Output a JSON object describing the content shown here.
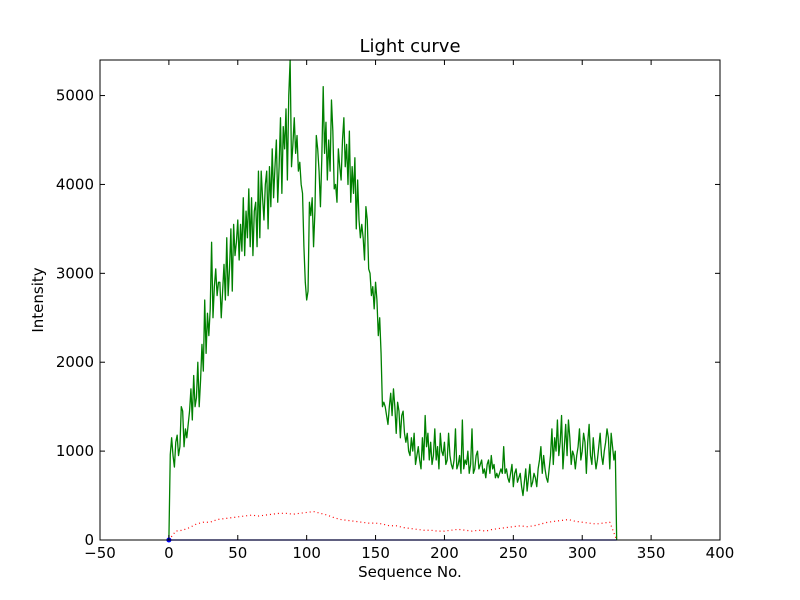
{
  "chart_data": {
    "type": "line",
    "title": "Light curve",
    "xlabel": "Sequence No.",
    "ylabel": "Intensity",
    "xlim": [
      -50,
      400
    ],
    "ylim": [
      0,
      5400
    ],
    "x_ticks": [
      "−50",
      "0",
      "50",
      "100",
      "150",
      "200",
      "250",
      "300",
      "350",
      "400"
    ],
    "y_ticks": [
      "0",
      "1000",
      "2000",
      "3000",
      "4000",
      "5000"
    ],
    "x_tick_values": [
      -50,
      0,
      50,
      100,
      150,
      200,
      250,
      300,
      350,
      400
    ],
    "y_tick_values": [
      0,
      1000,
      2000,
      3000,
      4000,
      5000
    ],
    "grid": false,
    "series": [
      {
        "color": "#008000",
        "style": "solid",
        "x": [
          0,
          1,
          2,
          3,
          4,
          5,
          6,
          7,
          8,
          9,
          10,
          11,
          12,
          13,
          14,
          15,
          16,
          17,
          18,
          19,
          20,
          21,
          22,
          23,
          24,
          25,
          26,
          27,
          28,
          29,
          30,
          31,
          32,
          33,
          34,
          35,
          36,
          37,
          38,
          39,
          40,
          41,
          42,
          43,
          44,
          45,
          46,
          47,
          48,
          49,
          50,
          51,
          52,
          53,
          54,
          55,
          56,
          57,
          58,
          59,
          60,
          61,
          62,
          63,
          64,
          65,
          66,
          67,
          68,
          69,
          70,
          71,
          72,
          73,
          74,
          75,
          76,
          77,
          78,
          79,
          80,
          81,
          82,
          83,
          84,
          85,
          86,
          87,
          88,
          89,
          90,
          91,
          92,
          93,
          94,
          95,
          96,
          97,
          98,
          99,
          100,
          101,
          102,
          103,
          104,
          105,
          106,
          107,
          108,
          109,
          110,
          111,
          112,
          113,
          114,
          115,
          116,
          117,
          118,
          119,
          120,
          121,
          122,
          123,
          124,
          125,
          126,
          127,
          128,
          129,
          130,
          131,
          132,
          133,
          134,
          135,
          136,
          137,
          138,
          139,
          140,
          141,
          142,
          143,
          144,
          145,
          146,
          147,
          148,
          149,
          150,
          151,
          152,
          153,
          154,
          155,
          156,
          157,
          158,
          159,
          160,
          161,
          162,
          163,
          164,
          165,
          166,
          167,
          168,
          169,
          170,
          171,
          172,
          173,
          174,
          175,
          176,
          177,
          178,
          179,
          180,
          181,
          182,
          183,
          184,
          185,
          186,
          187,
          188,
          189,
          190,
          191,
          192,
          193,
          194,
          195,
          196,
          197,
          198,
          199,
          200,
          201,
          202,
          203,
          204,
          205,
          206,
          207,
          208,
          209,
          210,
          211,
          212,
          213,
          214,
          215,
          216,
          217,
          218,
          219,
          220,
          221,
          222,
          223,
          224,
          225,
          226,
          227,
          228,
          229,
          230,
          231,
          232,
          233,
          234,
          235,
          236,
          237,
          238,
          239,
          240,
          241,
          242,
          243,
          244,
          245,
          246,
          247,
          248,
          249,
          250,
          251,
          252,
          253,
          254,
          255,
          256,
          257,
          258,
          259,
          260,
          261,
          262,
          263,
          264,
          265,
          266,
          267,
          268,
          269,
          270,
          271,
          272,
          273,
          274,
          275,
          276,
          277,
          278,
          279,
          280,
          281,
          282,
          283,
          284,
          285,
          286,
          287,
          288,
          289,
          290,
          291,
          292,
          293,
          294,
          295,
          296,
          297,
          298,
          299,
          300,
          301,
          302,
          303,
          304,
          305,
          306,
          307,
          308,
          309,
          310,
          311,
          312,
          313,
          314,
          315,
          316,
          317,
          318,
          319,
          320,
          321,
          322,
          323,
          324,
          325
        ],
        "y": [
          0,
          960,
          1150,
          950,
          820,
          1100,
          1180,
          950,
          1050,
          1500,
          1450,
          1050,
          1250,
          1150,
          1300,
          1450,
          1700,
          1350,
          1850,
          1500,
          1600,
          2000,
          1500,
          1800,
          2200,
          1900,
          2700,
          2100,
          2550,
          2300,
          2600,
          3350,
          2500,
          2850,
          3050,
          2750,
          2900,
          2900,
          2500,
          2800,
          3100,
          2700,
          3400,
          2750,
          3050,
          3500,
          2800,
          3550,
          3200,
          3350,
          3600,
          3150,
          3550,
          3250,
          3850,
          3200,
          3700,
          3400,
          3950,
          3300,
          3850,
          3200,
          3700,
          3800,
          3300,
          4150,
          3400,
          4150,
          3850,
          3600,
          4000,
          4150,
          3500,
          4200,
          3750,
          4400,
          3850,
          4200,
          4500,
          3800,
          4200,
          4750,
          3900,
          4650,
          4400,
          4850,
          4050,
          5000,
          5400,
          4200,
          4450,
          4750,
          4350,
          4550,
          4150,
          4250,
          4000,
          3900,
          3300,
          2900,
          2700,
          2800,
          3800,
          3650,
          3850,
          3300,
          3700,
          4550,
          4400,
          4150,
          3750,
          4300,
          5100,
          4350,
          4700,
          4050,
          4500,
          4150,
          4950,
          4600,
          3950,
          4000,
          3800,
          4400,
          4200,
          4050,
          4500,
          4750,
          4200,
          4450,
          4000,
          4600,
          3800,
          4200,
          3900,
          4300,
          3500,
          4050,
          3600,
          3400,
          3550,
          3400,
          3150,
          3750,
          3600,
          3050,
          3000,
          2750,
          2850,
          2600,
          2900,
          2700,
          2300,
          2500,
          2100,
          1500,
          1550,
          1500,
          1400,
          1300,
          1500,
          1650,
          1400,
          1700,
          1500,
          1200,
          1550,
          1450,
          1150,
          1400,
          1450,
          1200,
          1100,
          1200,
          1000,
          950,
          1150,
          1000,
          1200,
          850,
          950,
          1050,
          900,
          800,
          1150,
          900,
          1400,
          1050,
          1200,
          900,
          1100,
          850,
          950,
          1250,
          900,
          1050,
          800,
          1200,
          1000,
          950,
          1100,
          850,
          900,
          1200,
          950,
          850,
          800,
          900,
          1250,
          800,
          850,
          950,
          750,
          1350,
          800,
          900,
          850,
          1000,
          750,
          850,
          1250,
          750,
          800,
          950,
          1000,
          800,
          850,
          900,
          750,
          800,
          700,
          850,
          900,
          750,
          950,
          800,
          850,
          700,
          750,
          700,
          750,
          800,
          750,
          1050,
          750,
          800,
          700,
          650,
          750,
          850,
          600,
          750,
          800,
          650,
          700,
          750,
          600,
          500,
          650,
          800,
          550,
          700,
          850,
          600,
          650,
          750,
          700,
          600,
          800,
          900,
          1050,
          750,
          950,
          800,
          700,
          650,
          800,
          950,
          1250,
          850,
          1150,
          1000,
          1350,
          950,
          1100,
          1400,
          800,
          1050,
          1300,
          950,
          1350,
          1150,
          850,
          1000,
          950,
          800,
          950,
          1050,
          1250,
          900,
          1000,
          1200,
          1100,
          750,
          1100,
          1300,
          950,
          850,
          1150,
          950,
          800,
          900,
          1050,
          1200,
          950,
          850,
          1000,
          1100,
          1250,
          1150,
          800,
          1200,
          1050,
          900,
          1000,
          0
        ]
      },
      {
        "color": "#ff0000",
        "style": "dotted",
        "x": [
          0,
          5,
          10,
          15,
          20,
          25,
          30,
          35,
          40,
          45,
          50,
          55,
          60,
          65,
          70,
          75,
          80,
          85,
          90,
          95,
          100,
          105,
          110,
          115,
          120,
          125,
          130,
          135,
          140,
          145,
          150,
          155,
          160,
          165,
          170,
          175,
          180,
          185,
          190,
          195,
          200,
          205,
          210,
          215,
          220,
          225,
          230,
          235,
          240,
          245,
          250,
          255,
          260,
          265,
          270,
          275,
          280,
          285,
          290,
          295,
          300,
          305,
          310,
          315,
          320,
          325
        ],
        "y": [
          0,
          100,
          110,
          140,
          180,
          200,
          200,
          230,
          240,
          250,
          260,
          270,
          280,
          270,
          280,
          290,
          300,
          300,
          290,
          300,
          310,
          320,
          300,
          280,
          250,
          230,
          220,
          210,
          200,
          190,
          190,
          180,
          160,
          160,
          140,
          130,
          120,
          110,
          110,
          100,
          100,
          110,
          120,
          110,
          100,
          110,
          100,
          120,
          130,
          140,
          150,
          160,
          150,
          160,
          180,
          200,
          210,
          220,
          230,
          210,
          200,
          190,
          180,
          190,
          200,
          0
        ]
      },
      {
        "color": "#0000ff",
        "style": "solid",
        "x": [
          0,
          325
        ],
        "y": [
          0,
          0
        ]
      }
    ]
  }
}
